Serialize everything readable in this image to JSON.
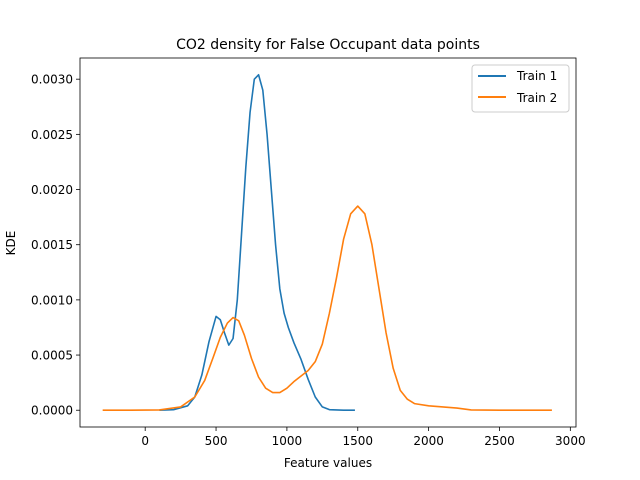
{
  "chart_data": {
    "type": "line",
    "title": "CO2 density for False Occupant data points",
    "xlabel": "Feature values",
    "ylabel": "KDE",
    "xlim": [
      -460,
      3040
    ],
    "ylim": [
      -0.000152,
      0.003192
    ],
    "xticks": [
      0,
      500,
      1000,
      1500,
      2000,
      2500,
      3000
    ],
    "xtick_labels": [
      "0",
      "500",
      "1000",
      "1500",
      "2000",
      "2500",
      "3000"
    ],
    "yticks": [
      0.0,
      0.0005,
      0.001,
      0.0015,
      0.002,
      0.0025,
      0.003
    ],
    "ytick_labels": [
      "0.0000",
      "0.0005",
      "0.0010",
      "0.0015",
      "0.0020",
      "0.0025",
      "0.0030"
    ],
    "grid": false,
    "legend_position": "top-right",
    "series": [
      {
        "name": "Train 1",
        "color": "#1f77b4",
        "points": [
          [
            100,
            0.0
          ],
          [
            200,
            5e-06
          ],
          [
            300,
            4e-05
          ],
          [
            350,
            0.00012
          ],
          [
            400,
            0.00032
          ],
          [
            450,
            0.00062
          ],
          [
            500,
            0.00085
          ],
          [
            530,
            0.00082
          ],
          [
            560,
            0.0007
          ],
          [
            590,
            0.00059
          ],
          [
            620,
            0.00065
          ],
          [
            650,
            0.001
          ],
          [
            680,
            0.0016
          ],
          [
            710,
            0.0022
          ],
          [
            740,
            0.0027
          ],
          [
            770,
            0.003
          ],
          [
            800,
            0.00304
          ],
          [
            830,
            0.0029
          ],
          [
            860,
            0.0025
          ],
          [
            890,
            0.002
          ],
          [
            920,
            0.0015
          ],
          [
            950,
            0.0011
          ],
          [
            980,
            0.00088
          ],
          [
            1010,
            0.00075
          ],
          [
            1050,
            0.00061
          ],
          [
            1100,
            0.00046
          ],
          [
            1150,
            0.00028
          ],
          [
            1200,
            0.00012
          ],
          [
            1250,
            3e-05
          ],
          [
            1300,
            5e-06
          ],
          [
            1400,
            0.0
          ],
          [
            1480,
            0.0
          ]
        ]
      },
      {
        "name": "Train 2",
        "color": "#ff7f0e",
        "points": [
          [
            -300,
            0.0
          ],
          [
            -100,
            0.0
          ],
          [
            100,
            3e-06
          ],
          [
            250,
            3e-05
          ],
          [
            350,
            0.00012
          ],
          [
            420,
            0.00027
          ],
          [
            480,
            0.00048
          ],
          [
            530,
            0.00066
          ],
          [
            580,
            0.00079
          ],
          [
            620,
            0.00084
          ],
          [
            660,
            0.00081
          ],
          [
            700,
            0.00068
          ],
          [
            750,
            0.00047
          ],
          [
            800,
            0.0003
          ],
          [
            850,
            0.0002
          ],
          [
            900,
            0.00016
          ],
          [
            950,
            0.00016
          ],
          [
            1000,
            0.0002
          ],
          [
            1050,
            0.00026
          ],
          [
            1100,
            0.00031
          ],
          [
            1150,
            0.00036
          ],
          [
            1200,
            0.00044
          ],
          [
            1250,
            0.0006
          ],
          [
            1300,
            0.00088
          ],
          [
            1350,
            0.0012
          ],
          [
            1400,
            0.00155
          ],
          [
            1450,
            0.00178
          ],
          [
            1500,
            0.00185
          ],
          [
            1550,
            0.00178
          ],
          [
            1600,
            0.0015
          ],
          [
            1650,
            0.0011
          ],
          [
            1700,
            0.0007
          ],
          [
            1750,
            0.00038
          ],
          [
            1800,
            0.00018
          ],
          [
            1850,
            0.0001
          ],
          [
            1900,
            6e-05
          ],
          [
            2000,
            4e-05
          ],
          [
            2200,
            2e-05
          ],
          [
            2300,
            3e-06
          ],
          [
            2500,
            0.0
          ],
          [
            2870,
            0.0
          ]
        ]
      }
    ]
  }
}
